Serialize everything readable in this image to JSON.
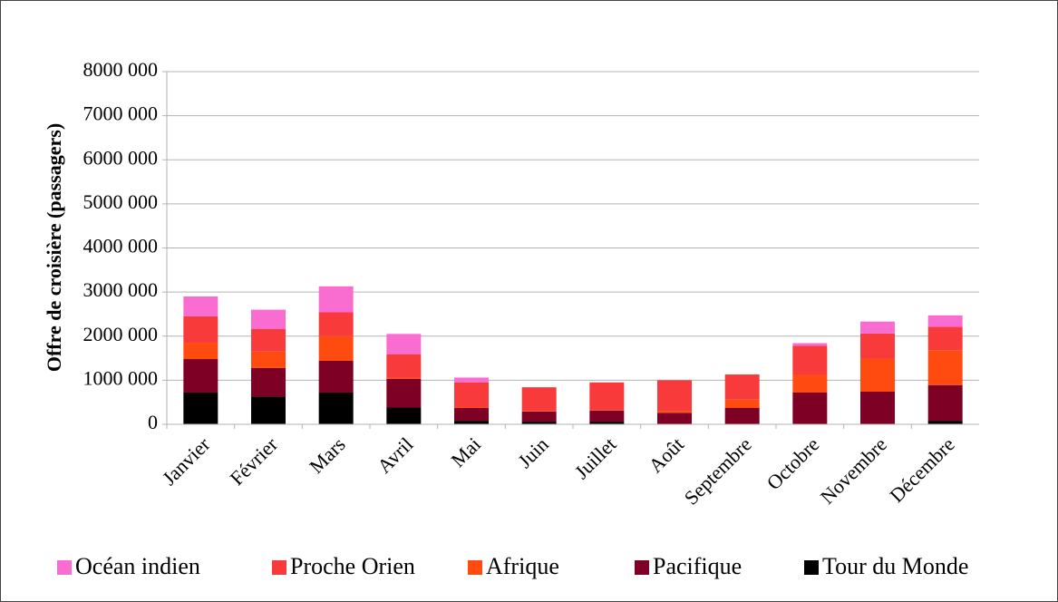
{
  "chart_data": {
    "type": "stacked_bar",
    "y_label": "Offre de croisière (passagers)",
    "categories": [
      "Janvier",
      "Février",
      "Mars",
      "Avril",
      "Mai",
      "Juin",
      "Juillet",
      "Août",
      "Septembre",
      "Octobre",
      "Novembre",
      "Décembre"
    ],
    "series": [
      {
        "name": "Tour du Monde",
        "color": "#000000",
        "values": [
          720000,
          630000,
          720000,
          380000,
          80000,
          60000,
          60000,
          0,
          0,
          0,
          0,
          80000
        ]
      },
      {
        "name": "Pacifique",
        "color": "#7f0025",
        "values": [
          760000,
          650000,
          720000,
          650000,
          290000,
          230000,
          250000,
          260000,
          370000,
          720000,
          740000,
          810000
        ]
      },
      {
        "name": "Afrique",
        "color": "#ff4a10",
        "values": [
          370000,
          370000,
          560000,
          20000,
          20000,
          10000,
          10000,
          40000,
          190000,
          400000,
          750000,
          790000
        ]
      },
      {
        "name": "Proche Orien",
        "color": "#f93a3a",
        "values": [
          600000,
          510000,
          540000,
          540000,
          560000,
          540000,
          630000,
          700000,
          570000,
          660000,
          570000,
          530000
        ]
      },
      {
        "name": "Océan indien",
        "color": "#f96cd0",
        "values": [
          450000,
          440000,
          590000,
          460000,
          110000,
          0,
          0,
          0,
          0,
          60000,
          270000,
          260000
        ]
      }
    ],
    "ylim": [
      0,
      8000000
    ],
    "yticks": [
      0,
      {
        "value": 1000000,
        "label": "1000 000"
      },
      {
        "value": 2000000,
        "label": "2000 000"
      },
      {
        "value": 3000000,
        "label": "3000 000"
      },
      {
        "value": 4000000,
        "label": "4000 000"
      },
      {
        "value": 5000000,
        "label": "5000 000"
      },
      {
        "value": 6000000,
        "label": "6000 000"
      },
      {
        "value": 7000000,
        "label": "7000 000"
      },
      {
        "value": 8000000,
        "label": "8000 000"
      }
    ],
    "grid": true,
    "legend": "bottom"
  }
}
